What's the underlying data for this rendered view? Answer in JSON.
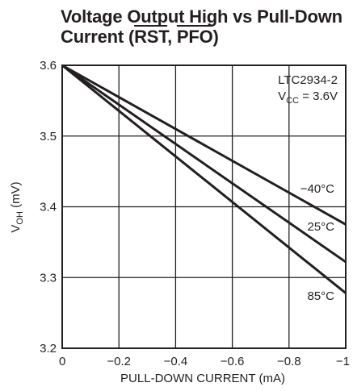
{
  "chart_data": {
    "type": "line",
    "title": {
      "line1": "Voltage Output High vs Pull-Down",
      "line2_prefix": "Current (",
      "line2_sig1": "RST",
      "line2_sep": ", ",
      "line2_sig2": "PFO",
      "line2_suffix": ")"
    },
    "xlabel": "PULL-DOWN CURRENT (mA)",
    "ylabel": {
      "base": "V",
      "sub": "OH",
      "unit": " (mV)"
    },
    "xlim": [
      0,
      -1
    ],
    "ylim": [
      3.2,
      3.6
    ],
    "x_ticks": [
      {
        "value": 0,
        "label": "0"
      },
      {
        "value": -0.2,
        "label": "−0.2"
      },
      {
        "value": -0.4,
        "label": "−0.4"
      },
      {
        "value": -0.6,
        "label": "−0.6"
      },
      {
        "value": -0.8,
        "label": "−0.8"
      },
      {
        "value": -1,
        "label": "−1"
      }
    ],
    "y_ticks": [
      {
        "value": 3.2,
        "label": "3.2"
      },
      {
        "value": 3.3,
        "label": "3.3"
      },
      {
        "value": 3.4,
        "label": "3.4"
      },
      {
        "value": 3.5,
        "label": "3.5"
      },
      {
        "value": 3.6,
        "label": "3.6"
      }
    ],
    "grid": true,
    "annotation": {
      "part": "LTC2934-2",
      "cond_base": "V",
      "cond_sub": "CC",
      "cond_value": " = 3.6V"
    },
    "series": [
      {
        "name": "−40°C",
        "x": [
          0,
          -1
        ],
        "y": [
          3.6,
          3.375
        ]
      },
      {
        "name": "25°C",
        "x": [
          0,
          -1
        ],
        "y": [
          3.6,
          3.322
        ]
      },
      {
        "name": "85°C",
        "x": [
          0,
          -1
        ],
        "y": [
          3.6,
          3.278
        ]
      }
    ]
  }
}
